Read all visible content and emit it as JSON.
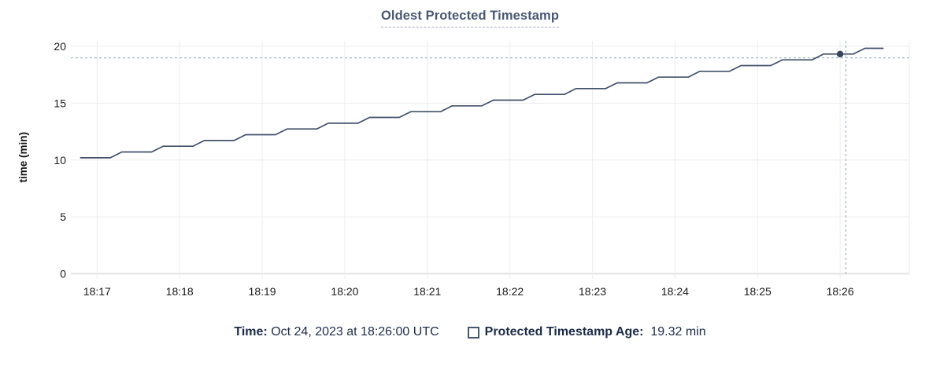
{
  "title": {
    "text": "Oldest Protected Timestamp"
  },
  "chart_data": {
    "type": "line",
    "title": "Oldest Protected Timestamp",
    "xlabel": "",
    "ylabel": "time (min)",
    "grid": true,
    "legend_position": "bottom",
    "ylim": [
      0,
      20
    ],
    "y_ticks": [
      0,
      5,
      10,
      15,
      20
    ],
    "x_domain": [
      16.682,
      26.838
    ],
    "x_ticks": [
      {
        "value": 17,
        "label": "18:17"
      },
      {
        "value": 18,
        "label": "18:18"
      },
      {
        "value": 19,
        "label": "18:19"
      },
      {
        "value": 20,
        "label": "18:20"
      },
      {
        "value": 21,
        "label": "18:21"
      },
      {
        "value": 22,
        "label": "18:22"
      },
      {
        "value": 23,
        "label": "18:23"
      },
      {
        "value": 24,
        "label": "18:24"
      },
      {
        "value": 25,
        "label": "18:25"
      },
      {
        "value": 26,
        "label": "18:26"
      }
    ],
    "x_encoding": "minutes after 18:00 UTC",
    "series": [
      {
        "name": "Protected Timestamp Age",
        "unit": "min",
        "points": [
          [
            16.8,
            10.2
          ],
          [
            17.16,
            10.2
          ],
          [
            17.3,
            10.71
          ],
          [
            17.66,
            10.71
          ],
          [
            17.8,
            11.21
          ],
          [
            18.16,
            11.21
          ],
          [
            18.3,
            11.72
          ],
          [
            18.66,
            11.72
          ],
          [
            18.8,
            12.23
          ],
          [
            19.16,
            12.23
          ],
          [
            19.3,
            12.73
          ],
          [
            19.66,
            12.73
          ],
          [
            19.8,
            13.24
          ],
          [
            20.16,
            13.24
          ],
          [
            20.3,
            13.75
          ],
          [
            20.66,
            13.75
          ],
          [
            20.8,
            14.25
          ],
          [
            21.16,
            14.25
          ],
          [
            21.3,
            14.76
          ],
          [
            21.66,
            14.76
          ],
          [
            21.8,
            15.27
          ],
          [
            22.16,
            15.27
          ],
          [
            22.3,
            15.77
          ],
          [
            22.66,
            15.77
          ],
          [
            22.8,
            16.28
          ],
          [
            23.16,
            16.28
          ],
          [
            23.3,
            16.79
          ],
          [
            23.66,
            16.79
          ],
          [
            23.8,
            17.29
          ],
          [
            24.16,
            17.29
          ],
          [
            24.3,
            17.8
          ],
          [
            24.66,
            17.8
          ],
          [
            24.8,
            18.31
          ],
          [
            25.16,
            18.31
          ],
          [
            25.3,
            18.81
          ],
          [
            25.66,
            18.81
          ],
          [
            25.8,
            19.32
          ],
          [
            26.16,
            19.32
          ],
          [
            26.3,
            19.83
          ],
          [
            26.52,
            19.83
          ]
        ]
      }
    ],
    "hover": {
      "point": [
        26.0,
        19.32
      ],
      "guide_x": 26.07,
      "guide_y": 18.99,
      "time": "Oct 24, 2023 at 18:26:00 UTC",
      "value": "19.32 min"
    }
  },
  "legend": {
    "time_label": "Time:",
    "time_value": "Oct 24, 2023 at 18:26:00 UTC",
    "series_label": "Protected Timestamp Age:",
    "series_value": "19.32 min"
  },
  "colors": {
    "line": "#41506b",
    "point": "#36445f",
    "grid": "#ededed",
    "zero_line": "#e4e4e4",
    "crosshair": "#a6bac4",
    "title": "#475872",
    "title_underline": "#a3adbd",
    "axis_text": "#1b1b1b",
    "axis_title_text": "#111111",
    "legend_text": "#1c2b4a",
    "checkbox_border": "#475872"
  }
}
